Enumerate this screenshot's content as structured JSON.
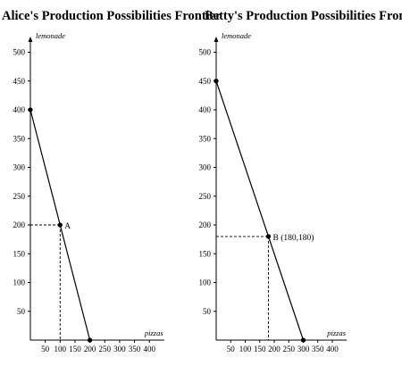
{
  "chart_data": [
    {
      "type": "line",
      "title": "Alice's Production Possibilities Frontier",
      "xlabel": "pizzas",
      "ylabel": "lemonade",
      "xlim": [
        0,
        450
      ],
      "ylim": [
        0,
        525
      ],
      "x_ticks": [
        50,
        100,
        150,
        200,
        250,
        300,
        350,
        400
      ],
      "y_ticks": [
        50,
        100,
        150,
        200,
        250,
        300,
        350,
        400,
        450,
        500
      ],
      "grid": false,
      "frontier": [
        {
          "x": 0,
          "y": 400
        },
        {
          "x": 200,
          "y": 0
        }
      ],
      "point": {
        "label": "A",
        "x": 100,
        "y": 200
      }
    },
    {
      "type": "line",
      "title": "Betty's Production Possibilities Frontier",
      "xlabel": "pizzas",
      "ylabel": "lemonade",
      "xlim": [
        0,
        450
      ],
      "ylim": [
        0,
        525
      ],
      "x_ticks": [
        50,
        100,
        150,
        200,
        250,
        300,
        350,
        400
      ],
      "y_ticks": [
        50,
        100,
        150,
        200,
        250,
        300,
        350,
        400,
        450,
        500
      ],
      "grid": false,
      "frontier": [
        {
          "x": 0,
          "y": 450
        },
        {
          "x": 300,
          "y": 0
        }
      ],
      "point": {
        "label": "B (180,180)",
        "x": 180,
        "y": 180
      }
    }
  ]
}
